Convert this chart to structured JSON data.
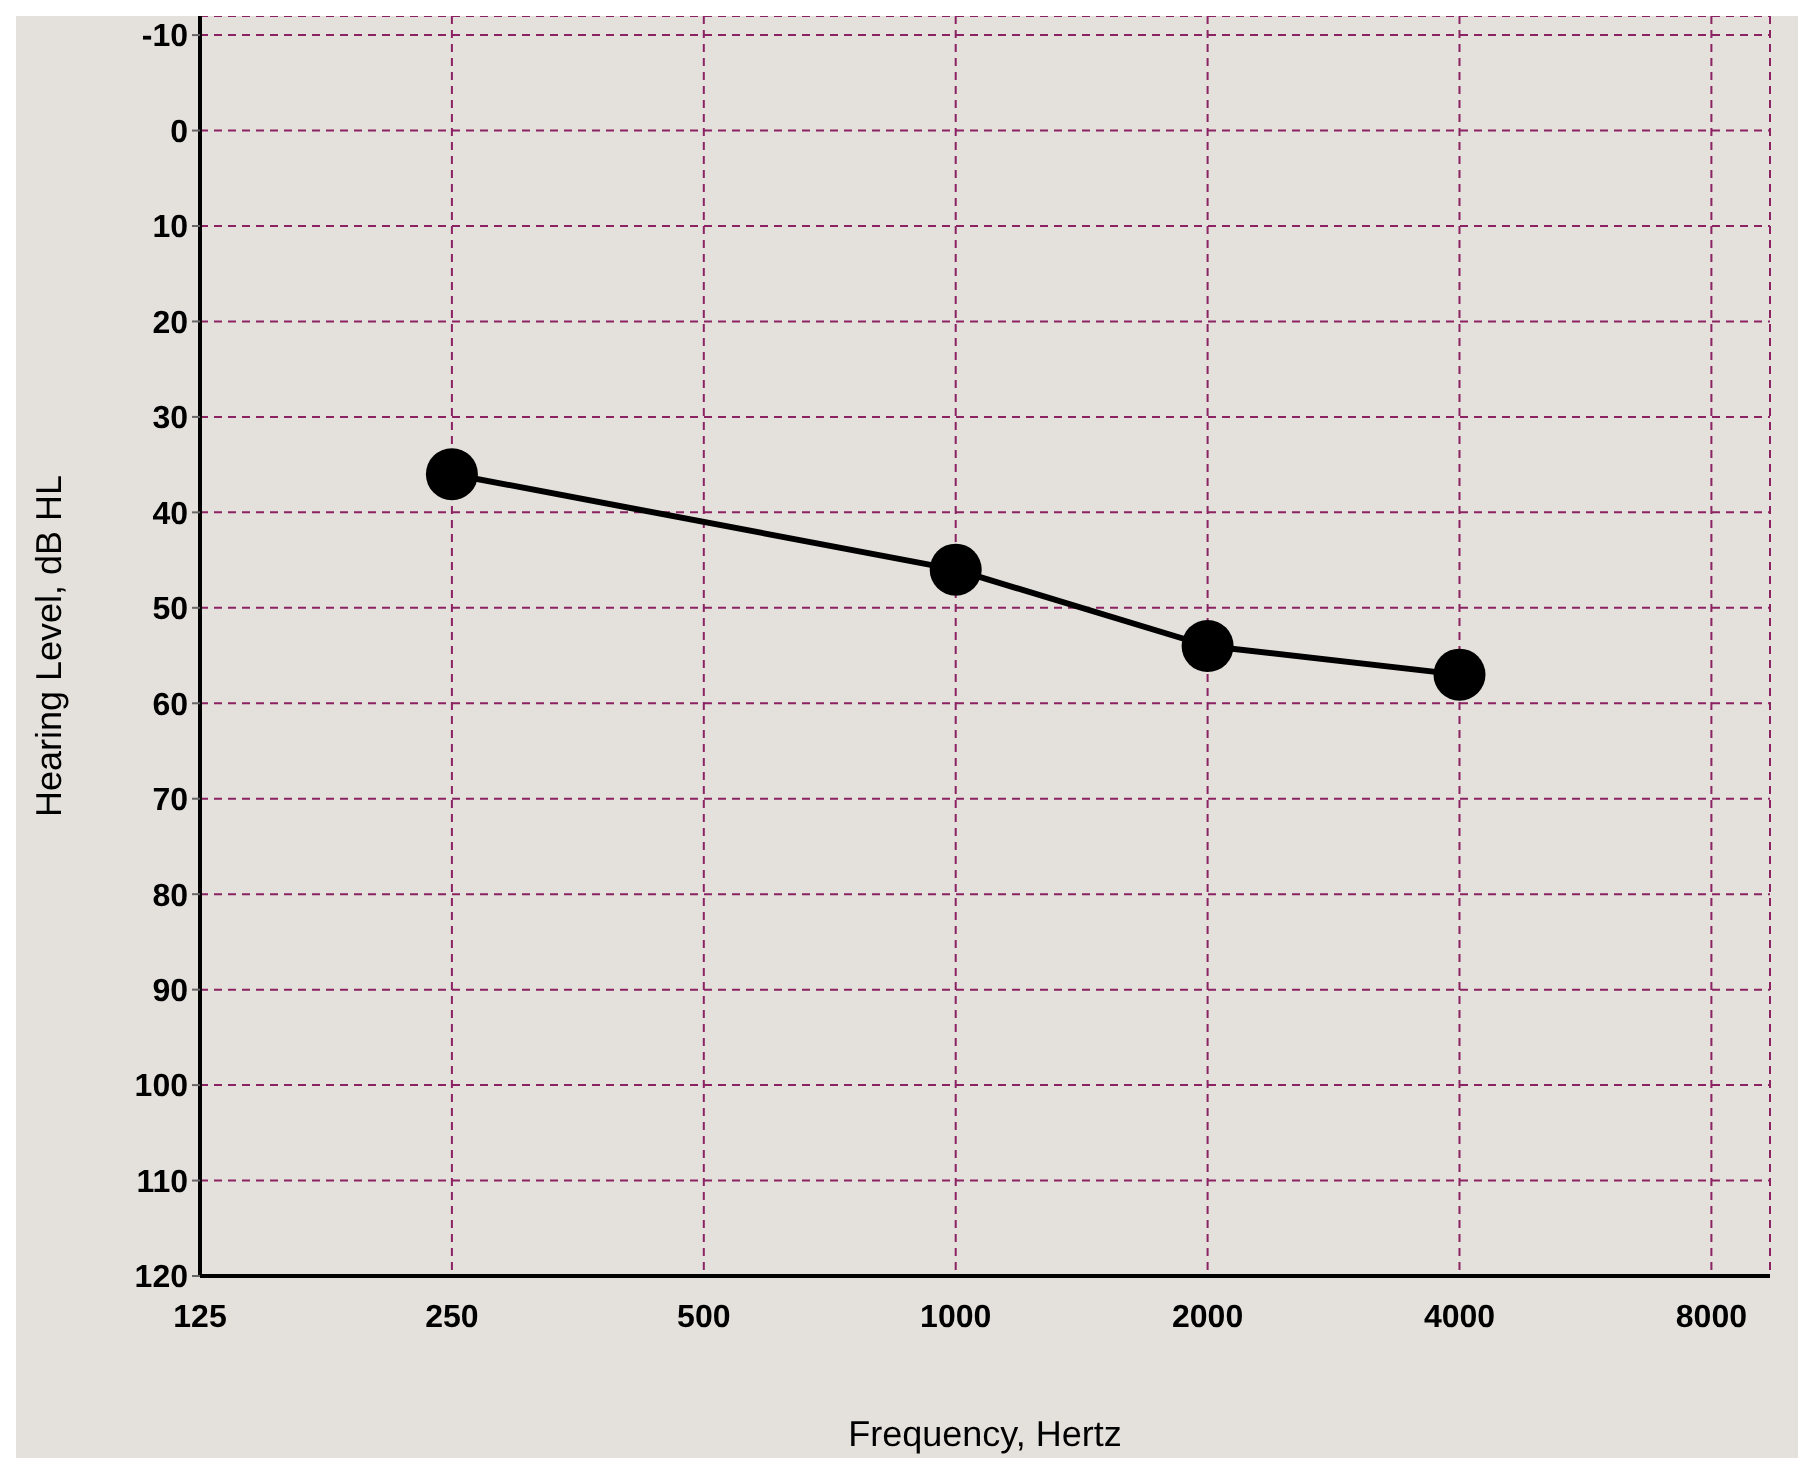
{
  "chart_data": {
    "type": "line",
    "xlabel": "Frequency, Hertz",
    "ylabel": "Hearing Level, dB HL",
    "x": [
      250,
      1000,
      2000,
      4000
    ],
    "series": [
      {
        "color": "#000000",
        "values": [
          36,
          46,
          54,
          57
        ]
      }
    ],
    "log": "x",
    "xlim": [
      125,
      9400
    ],
    "xticks": [
      125,
      250,
      500,
      1000,
      2000,
      4000,
      8000
    ],
    "ylim": [
      120,
      -12
    ],
    "yticks": [
      -10,
      0,
      10,
      20,
      30,
      40,
      50,
      60,
      70,
      80,
      90,
      100,
      110,
      120
    ],
    "grid": true,
    "marker": "circle",
    "line_style": "solid",
    "legend": false
  }
}
